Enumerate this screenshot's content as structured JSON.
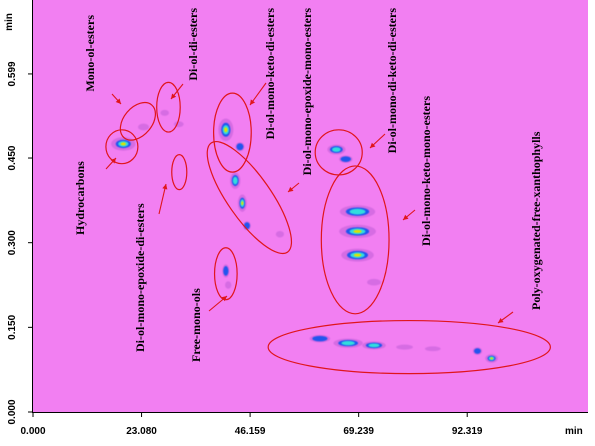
{
  "chart_data": {
    "type": "heatmap",
    "title": "",
    "x_axis": {
      "unit": "min",
      "ticks": [
        "0.000",
        "23.080",
        "46.159",
        "69.239",
        "92.319"
      ],
      "tick_values": [
        0.0,
        23.08,
        46.159,
        69.239,
        92.319
      ],
      "range": [
        0,
        118
      ]
    },
    "y_axis": {
      "unit": "min",
      "ticks": [
        "0.000",
        "0.150",
        "0.300",
        "0.450",
        "0.599"
      ],
      "tick_values": [
        0.0,
        0.15,
        0.3,
        0.45,
        0.599
      ],
      "range": [
        0,
        0.73
      ]
    },
    "colors": {
      "background": "#f27ff2",
      "ellipse": "#e0151b",
      "arrow": "#e0151b",
      "low": "#cc66dd",
      "mid": "#2255ee",
      "high": "#33dddd",
      "peak": "#e0e000"
    },
    "spots": [
      {
        "x": 19.2,
        "y": 0.475,
        "intensity": 1.0,
        "sx": 2.6,
        "sy": 0.012
      },
      {
        "x": 23.5,
        "y": 0.505,
        "intensity": 0.35,
        "sx": 1.6,
        "sy": 0.008
      },
      {
        "x": 28.0,
        "y": 0.53,
        "intensity": 0.4,
        "sx": 1.2,
        "sy": 0.007
      },
      {
        "x": 31.0,
        "y": 0.51,
        "intensity": 0.35,
        "sx": 1.4,
        "sy": 0.007
      },
      {
        "x": 41.0,
        "y": 0.5,
        "intensity": 1.0,
        "sx": 1.6,
        "sy": 0.02
      },
      {
        "x": 44.0,
        "y": 0.47,
        "intensity": 0.5,
        "sx": 1.2,
        "sy": 0.01
      },
      {
        "x": 43.0,
        "y": 0.41,
        "intensity": 0.8,
        "sx": 1.2,
        "sy": 0.016
      },
      {
        "x": 44.5,
        "y": 0.37,
        "intensity": 0.9,
        "sx": 1.0,
        "sy": 0.016
      },
      {
        "x": 45.5,
        "y": 0.33,
        "intensity": 0.5,
        "sx": 1.0,
        "sy": 0.01
      },
      {
        "x": 52.5,
        "y": 0.315,
        "intensity": 0.3,
        "sx": 1.2,
        "sy": 0.008
      },
      {
        "x": 41.0,
        "y": 0.25,
        "intensity": 0.6,
        "sx": 0.9,
        "sy": 0.014
      },
      {
        "x": 41.5,
        "y": 0.225,
        "intensity": 0.35,
        "sx": 0.9,
        "sy": 0.009
      },
      {
        "x": 64.5,
        "y": 0.465,
        "intensity": 0.7,
        "sx": 2.2,
        "sy": 0.01
      },
      {
        "x": 66.5,
        "y": 0.448,
        "intensity": 0.5,
        "sx": 1.8,
        "sy": 0.008
      },
      {
        "x": 69.0,
        "y": 0.355,
        "intensity": 0.85,
        "sx": 4.0,
        "sy": 0.012
      },
      {
        "x": 69.0,
        "y": 0.32,
        "intensity": 0.95,
        "sx": 4.0,
        "sy": 0.012
      },
      {
        "x": 69.0,
        "y": 0.278,
        "intensity": 0.9,
        "sx": 3.6,
        "sy": 0.012
      },
      {
        "x": 72.5,
        "y": 0.23,
        "intensity": 0.35,
        "sx": 2.0,
        "sy": 0.008
      },
      {
        "x": 61.0,
        "y": 0.13,
        "intensity": 0.6,
        "sx": 2.6,
        "sy": 0.008
      },
      {
        "x": 67.0,
        "y": 0.122,
        "intensity": 0.8,
        "sx": 3.4,
        "sy": 0.009
      },
      {
        "x": 72.5,
        "y": 0.118,
        "intensity": 0.75,
        "sx": 2.8,
        "sy": 0.008
      },
      {
        "x": 79.0,
        "y": 0.115,
        "intensity": 0.35,
        "sx": 2.4,
        "sy": 0.006
      },
      {
        "x": 85.0,
        "y": 0.112,
        "intensity": 0.25,
        "sx": 2.4,
        "sy": 0.006
      },
      {
        "x": 94.5,
        "y": 0.108,
        "intensity": 0.6,
        "sx": 1.2,
        "sy": 0.008
      },
      {
        "x": 97.5,
        "y": 0.095,
        "intensity": 0.9,
        "sx": 1.4,
        "sy": 0.008
      }
    ],
    "annotations": [
      {
        "label": "Mono-ol-esters",
        "ellipse": {
          "cx": 22.3,
          "cy": 0.515,
          "rx": 3.0,
          "ry": 0.038,
          "rotate": 40
        }
      },
      {
        "label": "Di-ol-di-esters",
        "ellipse": {
          "cx": 28.8,
          "cy": 0.54,
          "rx": 2.5,
          "ry": 0.044,
          "rotate": 0
        }
      },
      {
        "label": "Hydrocarbons",
        "ellipse": {
          "cx": 18.9,
          "cy": 0.47,
          "rx": 3.4,
          "ry": 0.03,
          "rotate": 0
        }
      },
      {
        "label": "Di-ol-mono-epoxide-di-esters",
        "ellipse": {
          "cx": 31.1,
          "cy": 0.425,
          "rx": 1.6,
          "ry": 0.031,
          "rotate": 0
        }
      },
      {
        "label": "Di-ol-mono-keto-di-esters",
        "ellipse": {
          "cx": 42.4,
          "cy": 0.495,
          "rx": 4.0,
          "ry": 0.07,
          "rotate": 0
        }
      },
      {
        "label": "Di-ol-mono-epoxide-mono-esters",
        "ellipse": {
          "cx": 46.0,
          "cy": 0.38,
          "rx": 4.6,
          "ry": 0.118,
          "rotate": -35
        }
      },
      {
        "label": "Free-mono-ols",
        "ellipse": {
          "cx": 41.0,
          "cy": 0.245,
          "rx": 2.4,
          "ry": 0.046,
          "rotate": 0
        }
      },
      {
        "label": "Di-ol-mono-di-keto-di-esters",
        "ellipse": {
          "cx": 65.0,
          "cy": 0.46,
          "rx": 5.0,
          "ry": 0.04,
          "rotate": 0
        }
      },
      {
        "label": "Di-ol-mono-keto-mono-esters",
        "ellipse": {
          "cx": 68.5,
          "cy": 0.305,
          "rx": 7.2,
          "ry": 0.131,
          "rotate": 0
        }
      },
      {
        "label": "Poly-oxygenated-free-xanthophylls",
        "ellipse": {
          "cx": 80.0,
          "cy": 0.115,
          "rx": 30.0,
          "ry": 0.047,
          "rotate": 0
        }
      }
    ]
  }
}
